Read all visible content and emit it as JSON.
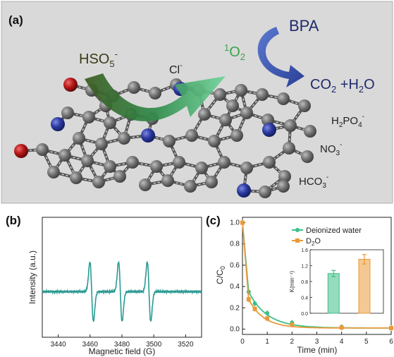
{
  "panel_a": {
    "label": "(a)",
    "hso5": {
      "base": "HSO",
      "sub": "5",
      "sup": "-"
    },
    "cl": {
      "base": "Cl",
      "sup": "-"
    },
    "o2": {
      "sup": "1",
      "base": "O",
      "sub": "2"
    },
    "bpa": "BPA",
    "products": {
      "a": "CO",
      "sub1": "2",
      "b": " +H",
      "sub2": "2",
      "c": "O"
    },
    "h2po4": {
      "a": "H",
      "sub1": "2",
      "b": "PO",
      "sub2": "4",
      "sup": "-"
    },
    "no3": {
      "a": "NO",
      "sub": "3",
      "sup": "-"
    },
    "hco3": {
      "a": "HCO",
      "sub": "3",
      "sup": "-"
    },
    "colors": {
      "background": "#d9d9d9",
      "carbon": "#6e6e6e",
      "nitrogen": "#2e3d9a",
      "oxygen": "#b01818",
      "text_dark": "#1f2a6b",
      "o2_green": "#3aa24a"
    }
  },
  "panel_b": {
    "label": "(b)",
    "chart_data": {
      "type": "line",
      "xlabel": "Magnetic field (G)",
      "ylabel": "Intensity (a.u.)",
      "xlim": [
        3430,
        3530
      ],
      "x_ticks": [
        "3440",
        "3460",
        "3480",
        "3500",
        "3520"
      ],
      "line_color": "#2a9a92",
      "signal": "EPR triplet (1:1:1)",
      "peaks_center": [
        3461,
        3479,
        3497
      ]
    }
  },
  "panel_c": {
    "label": "(c)",
    "chart_data": {
      "type": "line",
      "xlabel": "Time (min)",
      "ylabel": {
        "a": "C/C",
        "sub": "0"
      },
      "xlim": [
        0,
        6
      ],
      "ylim": [
        -0.05,
        1.05
      ],
      "x_ticks": [
        "0",
        "1",
        "2",
        "3",
        "4",
        "5",
        "6"
      ],
      "y_ticks": [
        "0.0",
        "0.2",
        "0.4",
        "0.6",
        "0.8",
        "1.0"
      ],
      "series": [
        {
          "name": "Deionized water",
          "color": "#3cbf87",
          "x": [
            0,
            0.25,
            0.5,
            1,
            2,
            4,
            6
          ],
          "y": [
            1.0,
            0.35,
            0.24,
            0.15,
            0.06,
            0.02,
            0.01
          ]
        },
        {
          "name": "D₂O",
          "color": "#e99a3a",
          "x": [
            0,
            0.25,
            0.5,
            1,
            2,
            4,
            6
          ],
          "y": [
            1.0,
            0.28,
            0.19,
            0.1,
            0.04,
            0.015,
            0.01
          ]
        }
      ],
      "legend": {
        "d2o": {
          "a": "D",
          "sub": "2",
          "b": "O"
        },
        "placement": "top-right"
      },
      "inset": {
        "type": "bar",
        "ylabel": "K(min⁻¹)",
        "ylim": [
          0,
          1.6
        ],
        "y_ticks": [
          "0.0",
          "0.4",
          "0.8",
          "1.2",
          "1.6"
        ],
        "bars": [
          {
            "name": "Deionized water",
            "value": 1.0,
            "error": 0.08,
            "color": "#3cbf87"
          },
          {
            "name": "D₂O",
            "value": 1.36,
            "error": 0.12,
            "color": "#e99a3a"
          }
        ]
      }
    }
  }
}
